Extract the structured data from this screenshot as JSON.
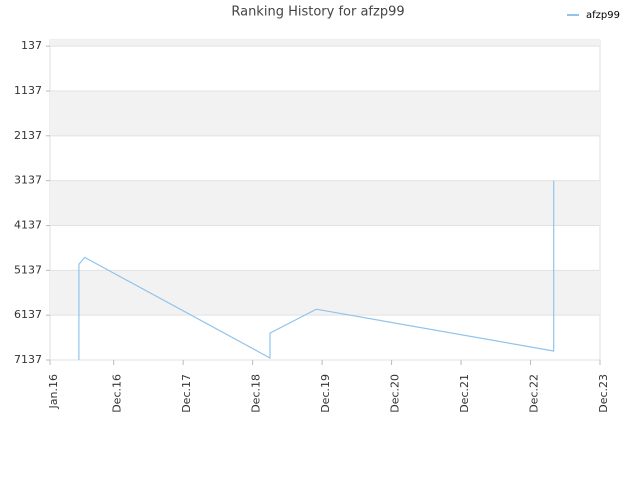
{
  "chart_data": {
    "type": "line",
    "title": "Ranking History for afzp99",
    "x": [
      "2016-06",
      "2016-06",
      "2016-07",
      "2019-03",
      "2019-03",
      "2019-11",
      "2023-04",
      "2023-04",
      "2023-04"
    ],
    "series": [
      {
        "name": "afzp99",
        "color": "#90c4ee",
        "values": [
          7137,
          5004,
          4848,
          7093,
          6537,
          6004,
          6937,
          6559,
          3137
        ]
      }
    ],
    "ylim": [
      7137,
      0
    ],
    "yticks": [
      137,
      1137,
      2137,
      3137,
      4137,
      5137,
      6137,
      7137
    ],
    "xlim": [
      "2016-01",
      "2023-12"
    ],
    "xticks": [
      {
        "value": "2016-01",
        "label": "Jan.16"
      },
      {
        "value": "2016-12",
        "label": "Dec.16"
      },
      {
        "value": "2017-12",
        "label": "Dec.17"
      },
      {
        "value": "2018-12",
        "label": "Dec.18"
      },
      {
        "value": "2019-12",
        "label": "Dec.19"
      },
      {
        "value": "2020-12",
        "label": "Dec.20"
      },
      {
        "value": "2021-12",
        "label": "Dec.21"
      },
      {
        "value": "2022-12",
        "label": "Dec.22"
      },
      {
        "value": "2023-12",
        "label": "Dec.23"
      }
    ],
    "grid": true,
    "legend": "top-right"
  }
}
